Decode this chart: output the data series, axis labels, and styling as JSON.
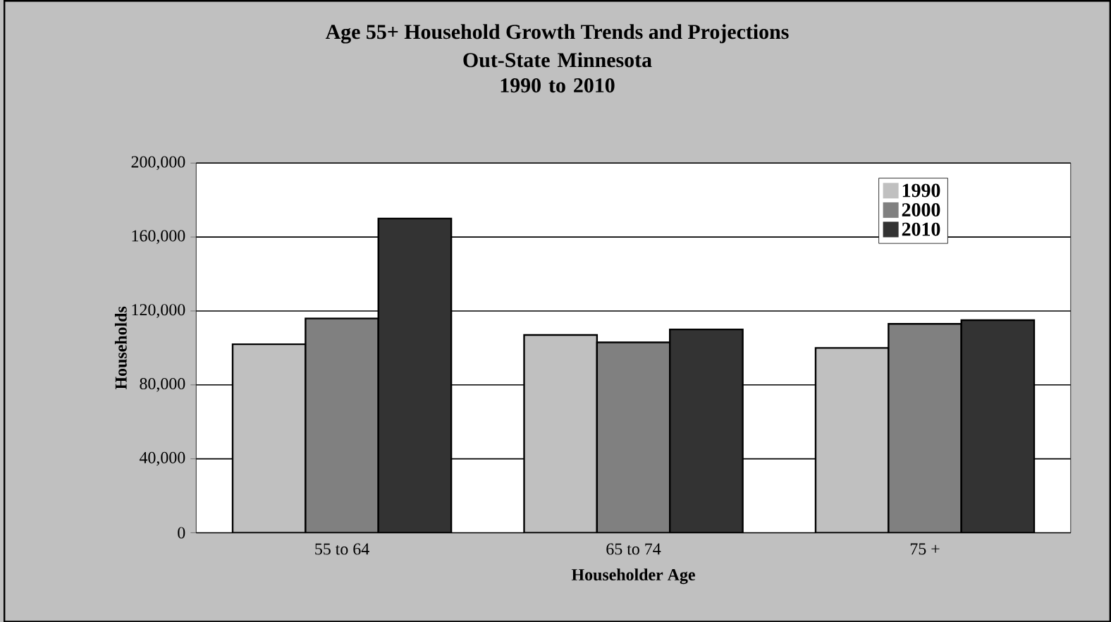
{
  "chart_data": {
    "type": "bar",
    "title": "Age 55+ Household Growth Trends and Projections",
    "subtitle": "Out-State Minnesota 1990 to 2010",
    "xlabel": "Householder Age",
    "ylabel": "Households",
    "categories": [
      "55 to 64",
      "65 to 74",
      "75 +"
    ],
    "series": [
      {
        "name": "1990",
        "color": "#c0c0c0",
        "values": [
          102000,
          107000,
          100000
        ]
      },
      {
        "name": "2000",
        "color": "#808080",
        "values": [
          116000,
          103000,
          113000
        ]
      },
      {
        "name": "2010",
        "color": "#333333",
        "values": [
          170000,
          110000,
          115000
        ]
      }
    ],
    "ylim": [
      0,
      200000
    ],
    "yticks": [
      {
        "value": 0,
        "label": "0"
      },
      {
        "value": 40000,
        "label": "40,000"
      },
      {
        "value": 80000,
        "label": "80,000"
      },
      {
        "value": 120000,
        "label": "120,000"
      },
      {
        "value": 160000,
        "label": "160,000"
      },
      {
        "value": 200000,
        "label": "200,000"
      }
    ],
    "grid": "y",
    "legend": "top right"
  }
}
